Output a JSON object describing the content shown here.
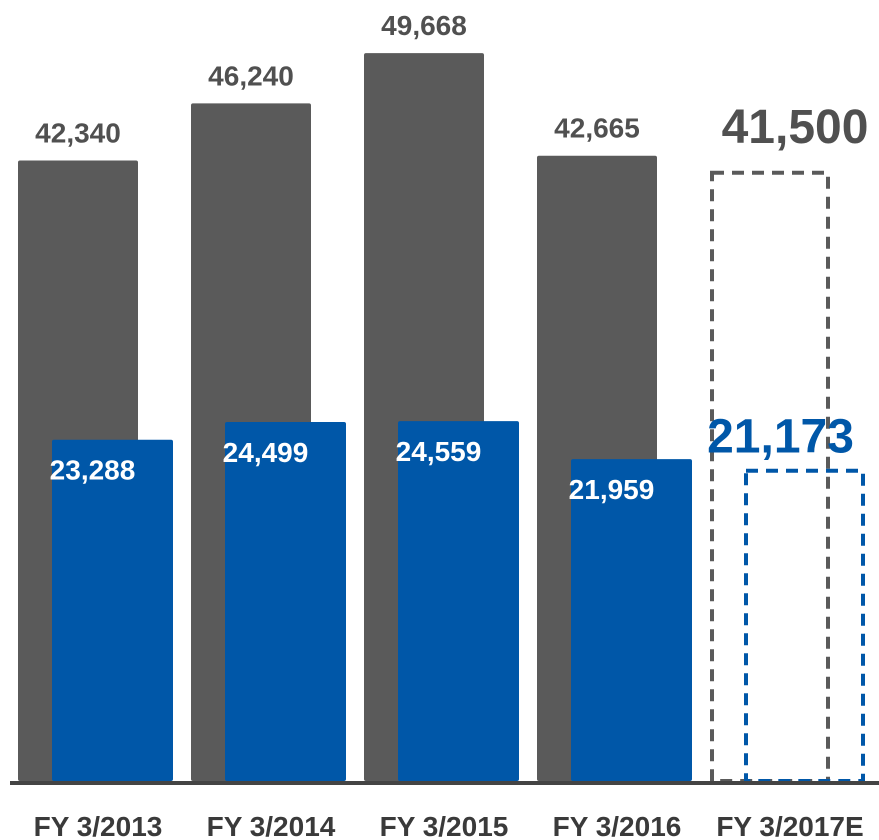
{
  "chart_data": {
    "type": "bar",
    "categories": [
      "FY 3/2013",
      "FY 3/2014",
      "FY 3/2015",
      "FY 3/2016",
      "FY 3/2017E"
    ],
    "series": [
      {
        "values": [
          42340,
          46240,
          49668,
          42665,
          41500
        ],
        "labels": [
          "42,340",
          "46,240",
          "49,668",
          "42,665",
          "41,500"
        ],
        "color": "#5a5a5a",
        "label_color": "#505050"
      },
      {
        "values": [
          23288,
          24499,
          24559,
          21959,
          21173
        ],
        "labels": [
          "23,288",
          "24,499",
          "24,559",
          "21,959",
          "21,173"
        ],
        "color": "#0057a8",
        "label_color": "#ffffff",
        "estimate_label_color": "#0057a8"
      }
    ],
    "estimate_index": 4,
    "estimate_style": "dashed-outline",
    "ylim": [
      0,
      52000
    ],
    "grid": false,
    "legend": "none",
    "title": "",
    "xlabel": "",
    "ylabel": "",
    "axis_color": "#444444"
  }
}
